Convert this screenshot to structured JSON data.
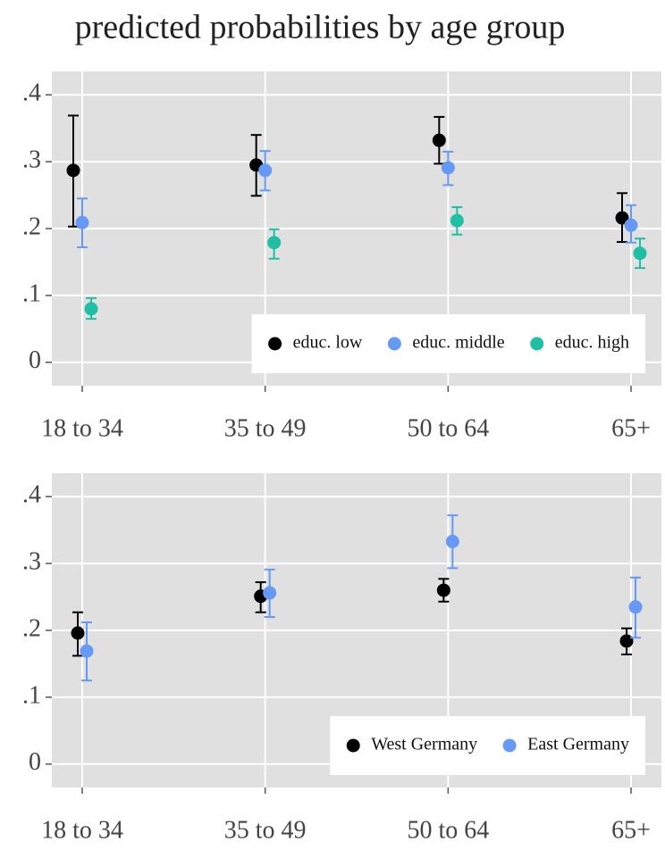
{
  "title": "predicted probabilities by age group",
  "chart_data": [
    {
      "type": "errorbar",
      "categories": [
        "18 to 34",
        "35 to 49",
        "50 to 64",
        "65+"
      ],
      "ylim": [
        -0.035,
        0.435
      ],
      "yticks": [
        0,
        {
          "value": 0.1,
          "label": ".1"
        },
        {
          "value": 0.2,
          "label": ".2"
        },
        {
          "value": 0.3,
          "label": ".3"
        },
        {
          "value": 0.4,
          "label": ".4"
        }
      ],
      "grid": true,
      "legend": "bottom right",
      "series": [
        {
          "name": "educ. low",
          "color": "#000000",
          "values": [
            0.287,
            0.295,
            0.332,
            0.216
          ],
          "ci_low": [
            0.203,
            0.249,
            0.297,
            0.18
          ],
          "ci_high": [
            0.369,
            0.34,
            0.367,
            0.253
          ]
        },
        {
          "name": "educ. middle",
          "color": "#6699f5",
          "values": [
            0.209,
            0.287,
            0.291,
            0.205
          ],
          "ci_low": [
            0.172,
            0.257,
            0.265,
            0.179
          ],
          "ci_high": [
            0.245,
            0.316,
            0.315,
            0.235
          ]
        },
        {
          "name": "educ. high",
          "color": "#1fbfa5",
          "values": [
            0.08,
            0.179,
            0.212,
            0.163
          ],
          "ci_low": [
            0.065,
            0.155,
            0.191,
            0.141
          ],
          "ci_high": [
            0.096,
            0.199,
            0.232,
            0.185
          ]
        }
      ]
    },
    {
      "type": "errorbar",
      "categories": [
        "18 to 34",
        "35 to 49",
        "50 to 64",
        "65+"
      ],
      "ylim": [
        -0.035,
        0.435
      ],
      "yticks": [
        0,
        {
          "value": 0.1,
          "label": ".1"
        },
        {
          "value": 0.2,
          "label": ".2"
        },
        {
          "value": 0.3,
          "label": ".3"
        },
        {
          "value": 0.4,
          "label": ".4"
        }
      ],
      "grid": true,
      "legend": "bottom right",
      "series": [
        {
          "name": "West Germany",
          "color": "#000000",
          "values": [
            0.196,
            0.251,
            0.26,
            0.184
          ],
          "ci_low": [
            0.162,
            0.227,
            0.243,
            0.164
          ],
          "ci_high": [
            0.227,
            0.272,
            0.277,
            0.203
          ]
        },
        {
          "name": "East Germany",
          "color": "#6699f5",
          "values": [
            0.169,
            0.256,
            0.333,
            0.235
          ],
          "ci_low": [
            0.125,
            0.22,
            0.293,
            0.189
          ],
          "ci_high": [
            0.212,
            0.291,
            0.372,
            0.279
          ]
        }
      ]
    }
  ]
}
